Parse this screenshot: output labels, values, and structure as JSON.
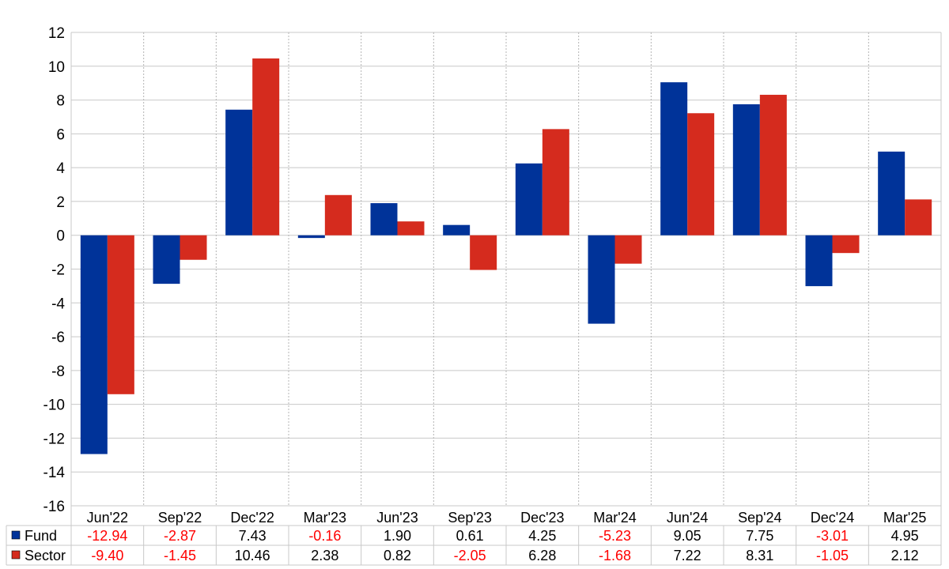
{
  "chart_data": {
    "type": "bar",
    "categories": [
      "Jun'22",
      "Sep'22",
      "Dec'22",
      "Mar'23",
      "Jun'23",
      "Sep'23",
      "Dec'23",
      "Mar'24",
      "Jun'24",
      "Sep'24",
      "Dec'24",
      "Mar'25"
    ],
    "series": [
      {
        "name": "Fund",
        "color": "#003399",
        "values": [
          -12.94,
          -2.87,
          7.43,
          -0.16,
          1.9,
          0.61,
          4.25,
          -5.23,
          9.05,
          7.75,
          -3.01,
          4.95
        ],
        "labels": [
          "-12.94",
          "-2.87",
          "7.43",
          "-0.16",
          "1.90",
          "0.61",
          "4.25",
          "-5.23",
          "9.05",
          "7.75",
          "-3.01",
          "4.95"
        ]
      },
      {
        "name": "Sector",
        "color": "#d52b1e",
        "values": [
          -9.4,
          -1.45,
          10.46,
          2.38,
          0.82,
          -2.05,
          6.28,
          -1.68,
          7.22,
          8.31,
          -1.05,
          2.12
        ],
        "labels": [
          "-9.40",
          "-1.45",
          "10.46",
          "2.38",
          "0.82",
          "-2.05",
          "6.28",
          "-1.68",
          "7.22",
          "8.31",
          "-1.05",
          "2.12"
        ]
      }
    ],
    "ylim": [
      -16,
      12
    ],
    "yticks": [
      -16,
      -14,
      -12,
      -10,
      -8,
      -6,
      -4,
      -2,
      0,
      2,
      4,
      6,
      8,
      10,
      12
    ],
    "grid": true,
    "legend": "table-below",
    "negative_color": "#ff0000",
    "positive_color": "#000000"
  }
}
